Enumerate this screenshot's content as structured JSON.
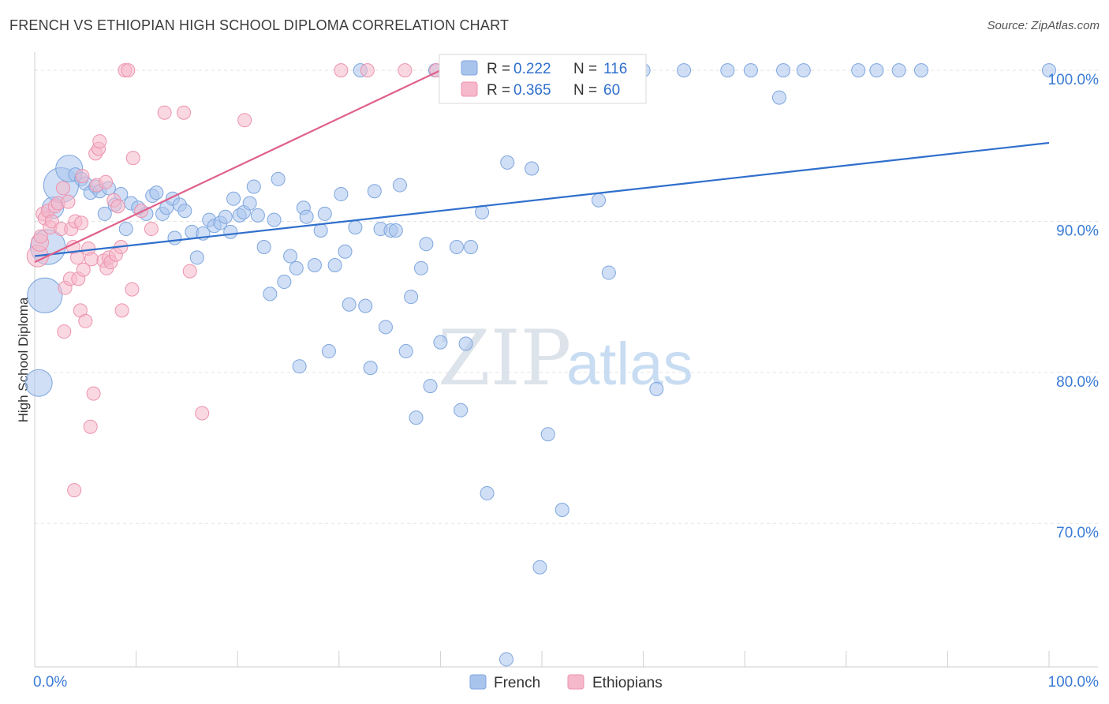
{
  "title": "FRENCH VS ETHIOPIAN HIGH SCHOOL DIPLOMA CORRELATION CHART",
  "source": "Source: ZipAtlas.com",
  "watermark": {
    "zip": "ZIP",
    "atlas": "atlas"
  },
  "colors": {
    "french": "#a9c4ec",
    "french_line": "#2f6fcc",
    "ethiopian": "#f6b8cb",
    "ethiopian_line": "#e0608a",
    "axis_text": "#3a7bd5"
  },
  "legend_box": [
    {
      "r_label": "R = ",
      "r_value": "0.222",
      "n_label": "N = ",
      "n_value": "116"
    },
    {
      "r_label": "R = ",
      "r_value": "0.365",
      "n_label": "N = ",
      "n_value": "60"
    }
  ],
  "chart_data": {
    "type": "scatter",
    "title": "FRENCH VS ETHIOPIAN HIGH SCHOOL DIPLOMA CORRELATION CHART",
    "xlabel": "",
    "ylabel": "High School Diploma",
    "xlim": [
      0,
      100
    ],
    "ylim": [
      60.5,
      101
    ],
    "x_tick_labels": [
      "0.0%",
      "100.0%"
    ],
    "y_tick_values": [
      70,
      80,
      90,
      100
    ],
    "y_tick_labels": [
      "70.0%",
      "80.0%",
      "90.0%",
      "100.0%"
    ],
    "legend": [
      "French",
      "Ethiopians"
    ],
    "series": [
      {
        "name": "French",
        "r": 0.222,
        "n": 116,
        "trend": {
          "x": [
            0,
            100
          ],
          "y": [
            87.7,
            95.2
          ]
        },
        "points": [
          {
            "x": 0.4,
            "y": 79.3,
            "s": 2
          },
          {
            "x": 1.0,
            "y": 85.1,
            "s": 2.6
          },
          {
            "x": 1.3,
            "y": 88.3,
            "s": 2.6
          },
          {
            "x": 1.8,
            "y": 90.9,
            "s": 1.6
          },
          {
            "x": 2.6,
            "y": 92.4,
            "s": 2.6
          },
          {
            "x": 3.4,
            "y": 93.5,
            "s": 2
          },
          {
            "x": 4.0,
            "y": 93.1,
            "s": 1
          },
          {
            "x": 4.6,
            "y": 92.8,
            "s": 1
          },
          {
            "x": 5.0,
            "y": 92.5,
            "s": 1
          },
          {
            "x": 5.5,
            "y": 91.9,
            "s": 1
          },
          {
            "x": 6.0,
            "y": 92.3,
            "s": 1
          },
          {
            "x": 6.4,
            "y": 92.0,
            "s": 1
          },
          {
            "x": 7.3,
            "y": 92.2,
            "s": 1
          },
          {
            "x": 7.9,
            "y": 91.1,
            "s": 1
          },
          {
            "x": 6.9,
            "y": 90.5,
            "s": 1
          },
          {
            "x": 8.5,
            "y": 91.8,
            "s": 1
          },
          {
            "x": 9.0,
            "y": 89.5,
            "s": 1
          },
          {
            "x": 9.5,
            "y": 91.2,
            "s": 1
          },
          {
            "x": 10.2,
            "y": 90.9,
            "s": 1
          },
          {
            "x": 11.0,
            "y": 90.5,
            "s": 1
          },
          {
            "x": 11.6,
            "y": 91.7,
            "s": 1
          },
          {
            "x": 12.0,
            "y": 91.9,
            "s": 1
          },
          {
            "x": 12.6,
            "y": 90.5,
            "s": 1
          },
          {
            "x": 13.0,
            "y": 90.9,
            "s": 1
          },
          {
            "x": 13.6,
            "y": 91.5,
            "s": 1
          },
          {
            "x": 14.3,
            "y": 91.1,
            "s": 1
          },
          {
            "x": 14.8,
            "y": 90.7,
            "s": 1
          },
          {
            "x": 13.8,
            "y": 88.9,
            "s": 1
          },
          {
            "x": 15.5,
            "y": 89.3,
            "s": 1
          },
          {
            "x": 16.0,
            "y": 87.6,
            "s": 1
          },
          {
            "x": 16.6,
            "y": 89.2,
            "s": 1
          },
          {
            "x": 17.2,
            "y": 90.1,
            "s": 1
          },
          {
            "x": 17.7,
            "y": 89.7,
            "s": 1
          },
          {
            "x": 18.3,
            "y": 89.9,
            "s": 1
          },
          {
            "x": 18.8,
            "y": 90.3,
            "s": 1
          },
          {
            "x": 19.3,
            "y": 89.3,
            "s": 1
          },
          {
            "x": 19.6,
            "y": 91.5,
            "s": 1
          },
          {
            "x": 20.2,
            "y": 90.4,
            "s": 1
          },
          {
            "x": 20.6,
            "y": 90.6,
            "s": 1
          },
          {
            "x": 21.2,
            "y": 91.2,
            "s": 1
          },
          {
            "x": 21.6,
            "y": 92.3,
            "s": 1
          },
          {
            "x": 22.0,
            "y": 90.4,
            "s": 1
          },
          {
            "x": 22.6,
            "y": 88.3,
            "s": 1
          },
          {
            "x": 23.2,
            "y": 85.2,
            "s": 1
          },
          {
            "x": 23.6,
            "y": 90.1,
            "s": 1
          },
          {
            "x": 24.0,
            "y": 92.8,
            "s": 1
          },
          {
            "x": 24.6,
            "y": 86.0,
            "s": 1
          },
          {
            "x": 25.2,
            "y": 87.7,
            "s": 1
          },
          {
            "x": 25.8,
            "y": 86.9,
            "s": 1
          },
          {
            "x": 26.1,
            "y": 80.4,
            "s": 1
          },
          {
            "x": 26.5,
            "y": 90.9,
            "s": 1
          },
          {
            "x": 26.8,
            "y": 90.3,
            "s": 1
          },
          {
            "x": 27.6,
            "y": 87.1,
            "s": 1
          },
          {
            "x": 28.2,
            "y": 89.4,
            "s": 1
          },
          {
            "x": 28.6,
            "y": 90.5,
            "s": 1
          },
          {
            "x": 29.0,
            "y": 81.4,
            "s": 1
          },
          {
            "x": 29.6,
            "y": 87.1,
            "s": 1
          },
          {
            "x": 30.2,
            "y": 91.8,
            "s": 1
          },
          {
            "x": 30.6,
            "y": 88.0,
            "s": 1
          },
          {
            "x": 31.0,
            "y": 84.5,
            "s": 1
          },
          {
            "x": 31.6,
            "y": 89.6,
            "s": 1
          },
          {
            "x": 32.1,
            "y": 100.0,
            "s": 1
          },
          {
            "x": 32.6,
            "y": 84.4,
            "s": 1
          },
          {
            "x": 33.1,
            "y": 80.3,
            "s": 1
          },
          {
            "x": 33.5,
            "y": 92.0,
            "s": 1
          },
          {
            "x": 34.1,
            "y": 89.5,
            "s": 1
          },
          {
            "x": 34.6,
            "y": 83.0,
            "s": 1
          },
          {
            "x": 35.1,
            "y": 89.4,
            "s": 1
          },
          {
            "x": 35.6,
            "y": 89.4,
            "s": 1
          },
          {
            "x": 36.0,
            "y": 92.4,
            "s": 1
          },
          {
            "x": 36.6,
            "y": 81.4,
            "s": 1
          },
          {
            "x": 37.1,
            "y": 85.0,
            "s": 1
          },
          {
            "x": 37.6,
            "y": 77.0,
            "s": 1
          },
          {
            "x": 38.1,
            "y": 86.9,
            "s": 1
          },
          {
            "x": 38.6,
            "y": 88.5,
            "s": 1
          },
          {
            "x": 39.0,
            "y": 79.1,
            "s": 1
          },
          {
            "x": 39.5,
            "y": 100.0,
            "s": 1
          },
          {
            "x": 40.0,
            "y": 82.0,
            "s": 1
          },
          {
            "x": 41.0,
            "y": 100.0,
            "s": 1
          },
          {
            "x": 41.6,
            "y": 88.3,
            "s": 1
          },
          {
            "x": 42.0,
            "y": 77.5,
            "s": 1
          },
          {
            "x": 42.5,
            "y": 81.9,
            "s": 1
          },
          {
            "x": 43.0,
            "y": 88.3,
            "s": 1
          },
          {
            "x": 43.6,
            "y": 100.0,
            "s": 1
          },
          {
            "x": 44.1,
            "y": 90.6,
            "s": 1
          },
          {
            "x": 44.6,
            "y": 72.0,
            "s": 1
          },
          {
            "x": 46.0,
            "y": 100.0,
            "s": 1
          },
          {
            "x": 46.6,
            "y": 93.9,
            "s": 1
          },
          {
            "x": 46.5,
            "y": 61.0,
            "s": 1
          },
          {
            "x": 47.5,
            "y": 100.0,
            "s": 1
          },
          {
            "x": 48.1,
            "y": 100.0,
            "s": 1
          },
          {
            "x": 49.0,
            "y": 93.5,
            "s": 1
          },
          {
            "x": 49.8,
            "y": 67.1,
            "s": 1
          },
          {
            "x": 50.6,
            "y": 75.9,
            "s": 1
          },
          {
            "x": 52.0,
            "y": 70.9,
            "s": 1
          },
          {
            "x": 55.6,
            "y": 91.4,
            "s": 1
          },
          {
            "x": 56.6,
            "y": 86.6,
            "s": 1
          },
          {
            "x": 58.0,
            "y": 100.0,
            "s": 1
          },
          {
            "x": 60.0,
            "y": 100.0,
            "s": 1
          },
          {
            "x": 61.3,
            "y": 78.9,
            "s": 1
          },
          {
            "x": 64.0,
            "y": 100.0,
            "s": 1
          },
          {
            "x": 68.3,
            "y": 100.0,
            "s": 1
          },
          {
            "x": 70.6,
            "y": 100.0,
            "s": 1
          },
          {
            "x": 73.4,
            "y": 98.2,
            "s": 1
          },
          {
            "x": 73.8,
            "y": 100.0,
            "s": 1
          },
          {
            "x": 75.8,
            "y": 100.0,
            "s": 1
          },
          {
            "x": 81.2,
            "y": 100.0,
            "s": 1
          },
          {
            "x": 83.0,
            "y": 100.0,
            "s": 1
          },
          {
            "x": 85.2,
            "y": 100.0,
            "s": 1
          },
          {
            "x": 87.4,
            "y": 100.0,
            "s": 1
          },
          {
            "x": 100.0,
            "y": 100.0,
            "s": 1
          }
        ]
      },
      {
        "name": "Ethiopians",
        "r": 0.365,
        "n": 60,
        "trend": {
          "x": [
            0,
            40
          ],
          "y": [
            87.3,
            100.0
          ]
        },
        "points": [
          {
            "x": 0.3,
            "y": 87.7,
            "s": 1.6
          },
          {
            "x": 0.5,
            "y": 88.6,
            "s": 1.3
          },
          {
            "x": 0.6,
            "y": 89.0,
            "s": 1
          },
          {
            "x": 0.8,
            "y": 90.5,
            "s": 1
          },
          {
            "x": 1.0,
            "y": 90.2,
            "s": 1
          },
          {
            "x": 1.3,
            "y": 90.7,
            "s": 1
          },
          {
            "x": 1.5,
            "y": 89.6,
            "s": 1
          },
          {
            "x": 1.7,
            "y": 90.0,
            "s": 1
          },
          {
            "x": 2.0,
            "y": 91.0,
            "s": 1
          },
          {
            "x": 2.3,
            "y": 91.2,
            "s": 1
          },
          {
            "x": 2.6,
            "y": 89.5,
            "s": 1
          },
          {
            "x": 2.8,
            "y": 92.2,
            "s": 1
          },
          {
            "x": 3.0,
            "y": 85.6,
            "s": 1
          },
          {
            "x": 2.9,
            "y": 82.7,
            "s": 1
          },
          {
            "x": 3.3,
            "y": 91.3,
            "s": 1
          },
          {
            "x": 3.5,
            "y": 86.2,
            "s": 1
          },
          {
            "x": 3.6,
            "y": 89.5,
            "s": 1
          },
          {
            "x": 3.8,
            "y": 88.3,
            "s": 1
          },
          {
            "x": 4.0,
            "y": 90.0,
            "s": 1
          },
          {
            "x": 3.9,
            "y": 72.2,
            "s": 1
          },
          {
            "x": 4.3,
            "y": 86.2,
            "s": 1
          },
          {
            "x": 4.2,
            "y": 87.6,
            "s": 1
          },
          {
            "x": 4.5,
            "y": 84.1,
            "s": 1
          },
          {
            "x": 4.6,
            "y": 89.9,
            "s": 1
          },
          {
            "x": 4.7,
            "y": 93.0,
            "s": 1
          },
          {
            "x": 4.8,
            "y": 86.8,
            "s": 1
          },
          {
            "x": 5.0,
            "y": 83.4,
            "s": 1
          },
          {
            "x": 5.3,
            "y": 88.2,
            "s": 1
          },
          {
            "x": 5.6,
            "y": 87.5,
            "s": 1
          },
          {
            "x": 5.5,
            "y": 76.4,
            "s": 1
          },
          {
            "x": 5.8,
            "y": 78.6,
            "s": 1
          },
          {
            "x": 6.0,
            "y": 94.5,
            "s": 1
          },
          {
            "x": 6.1,
            "y": 92.4,
            "s": 1
          },
          {
            "x": 6.3,
            "y": 94.8,
            "s": 1
          },
          {
            "x": 6.4,
            "y": 95.3,
            "s": 1
          },
          {
            "x": 6.8,
            "y": 87.4,
            "s": 1
          },
          {
            "x": 7.0,
            "y": 92.6,
            "s": 1
          },
          {
            "x": 7.1,
            "y": 86.9,
            "s": 1
          },
          {
            "x": 7.3,
            "y": 87.6,
            "s": 1
          },
          {
            "x": 7.5,
            "y": 87.3,
            "s": 1
          },
          {
            "x": 7.8,
            "y": 91.4,
            "s": 1
          },
          {
            "x": 8.2,
            "y": 91.0,
            "s": 1
          },
          {
            "x": 8.0,
            "y": 87.8,
            "s": 1
          },
          {
            "x": 8.5,
            "y": 88.3,
            "s": 1
          },
          {
            "x": 8.6,
            "y": 84.1,
            "s": 1
          },
          {
            "x": 8.9,
            "y": 100.0,
            "s": 1
          },
          {
            "x": 9.2,
            "y": 100.0,
            "s": 1
          },
          {
            "x": 9.6,
            "y": 85.5,
            "s": 1
          },
          {
            "x": 9.7,
            "y": 94.2,
            "s": 1
          },
          {
            "x": 10.5,
            "y": 90.7,
            "s": 1
          },
          {
            "x": 11.5,
            "y": 89.5,
            "s": 1
          },
          {
            "x": 12.8,
            "y": 97.2,
            "s": 1
          },
          {
            "x": 14.7,
            "y": 97.2,
            "s": 1
          },
          {
            "x": 15.3,
            "y": 86.7,
            "s": 1
          },
          {
            "x": 16.5,
            "y": 77.3,
            "s": 1
          },
          {
            "x": 20.7,
            "y": 96.7,
            "s": 1
          },
          {
            "x": 30.2,
            "y": 100.0,
            "s": 1
          },
          {
            "x": 32.8,
            "y": 100.0,
            "s": 1
          },
          {
            "x": 36.5,
            "y": 100.0,
            "s": 1
          },
          {
            "x": 39.6,
            "y": 100.0,
            "s": 1
          }
        ]
      }
    ]
  }
}
